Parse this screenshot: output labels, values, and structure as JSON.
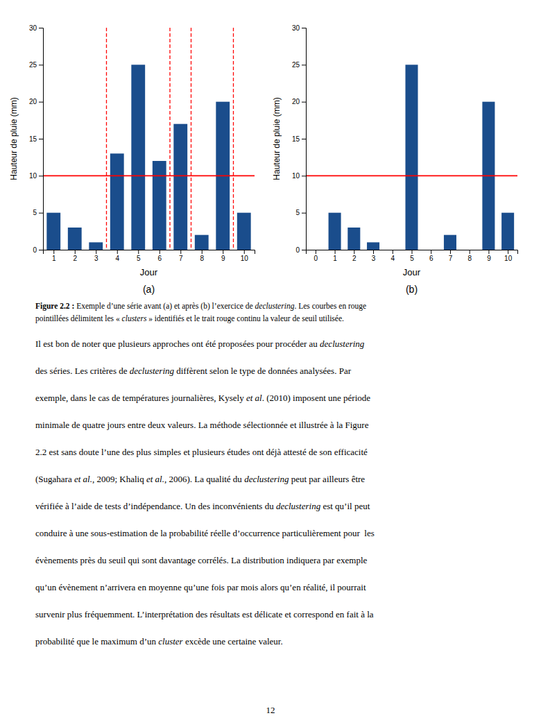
{
  "chart_data": [
    {
      "type": "bar",
      "x": [
        1,
        2,
        3,
        4,
        5,
        6,
        7,
        8,
        9,
        10
      ],
      "values": [
        5,
        3,
        1,
        13,
        25,
        12,
        17,
        2,
        20,
        5
      ],
      "color": "#1a4d8c",
      "xlabel": "Jour",
      "ylabel": "Hauteur de pluie (mm)",
      "xlim": [
        0.5,
        10.5
      ],
      "xticks": [
        1,
        2,
        3,
        4,
        5,
        6,
        7,
        8,
        9,
        10
      ],
      "ylim": [
        0,
        30
      ],
      "yticks": [
        0,
        5,
        10,
        15,
        20,
        25,
        30
      ],
      "hlines": {
        "y": [
          10
        ],
        "color": "red"
      },
      "vlines": {
        "x": [
          3.5,
          6.5,
          7.5,
          9.5
        ],
        "color": "red",
        "line_style": "dashed"
      },
      "label": "(a)"
    },
    {
      "type": "bar",
      "x": [
        0,
        1,
        2,
        3,
        4,
        5,
        6,
        7,
        8,
        9,
        10
      ],
      "values": [
        0,
        5,
        3,
        1,
        0,
        25,
        0,
        2,
        0,
        20,
        5
      ],
      "color": "#1a4d8c",
      "xlabel": "Jour",
      "ylabel": "Hauteur de pluie (mm)",
      "xlim": [
        -0.5,
        10.5
      ],
      "xticks": [
        0,
        1,
        2,
        3,
        4,
        5,
        6,
        7,
        8,
        9,
        10
      ],
      "ylim": [
        0,
        30
      ],
      "yticks": [
        0,
        5,
        10,
        15,
        20,
        25,
        30
      ],
      "hlines": {
        "y": [
          10
        ],
        "color": "red"
      },
      "label": "(b)"
    }
  ],
  "caption": [
    [
      {
        "text": "Figure 2.2 : ",
        "bold": true
      },
      {
        "text": "Exemple d’une série avant (a) et après (b) l’exercice de "
      },
      {
        "text": "declustering",
        "italic": true
      },
      {
        "text": ". Les courbes en rouge"
      }
    ],
    [
      {
        "text": "pointillées délimitent les « "
      },
      {
        "text": "clusters",
        "italic": true
      },
      {
        "text": " » identifiés et le trait rouge continu la valeur de seuil utilisée."
      }
    ]
  ],
  "body": [
    [
      {
        "text": "Il est bon de noter que plusieurs approches ont été proposées pour procéder au "
      },
      {
        "text": "declustering",
        "italic": true
      }
    ],
    [
      {
        "text": "des séries. Les critères de "
      },
      {
        "text": "declustering",
        "italic": true
      },
      {
        "text": " diffèrent selon le type de données analysées. Par"
      }
    ],
    [
      {
        "text": "exemple, dans le cas de températures journalières, Kysely "
      },
      {
        "text": "et al",
        "italic": true
      },
      {
        "text": ". (2010) imposent une période"
      }
    ],
    [
      {
        "text": "minimale de quatre jours entre deux valeurs. La méthode sélectionnée et illustrée à la Figure"
      }
    ],
    [
      {
        "text": "2.2 est sans doute l’une des plus simples et plusieurs études ont déjà attesté de son efficacité"
      }
    ],
    [
      {
        "text": "(Sugahara "
      },
      {
        "text": "et al.",
        "italic": true
      },
      {
        "text": ", 2009; Khaliq "
      },
      {
        "text": "et al.",
        "italic": true
      },
      {
        "text": ", 2006). La qualité du "
      },
      {
        "text": "declustering",
        "italic": true
      },
      {
        "text": " peut par ailleurs être"
      }
    ],
    [
      {
        "text": "vérifiée à l’aide de tests d’indépendance. Un des inconvénients du "
      },
      {
        "text": "declustering",
        "italic": true
      },
      {
        "text": " est qu’il peut"
      }
    ],
    [
      {
        "text": "conduire à une sous-estimation de la probabilité réelle d’occurrence particulièrement pour  les"
      }
    ],
    [
      {
        "text": "évènements près du seuil qui sont davantage corrélés. La distribution indiquera par exemple"
      }
    ],
    [
      {
        "text": "qu’un évènement n’arrivera en moyenne qu’une fois par mois alors qu’en réalité, il pourrait"
      }
    ],
    [
      {
        "text": "survenir plus fréquemment. L’interprétation des résultats est délicate et correspond en fait à la"
      }
    ],
    [
      {
        "text": "probabilité que le maximum d’un "
      },
      {
        "text": "cluster",
        "italic": true
      },
      {
        "text": " excède une certaine valeur."
      }
    ]
  ],
  "page_number": "12"
}
